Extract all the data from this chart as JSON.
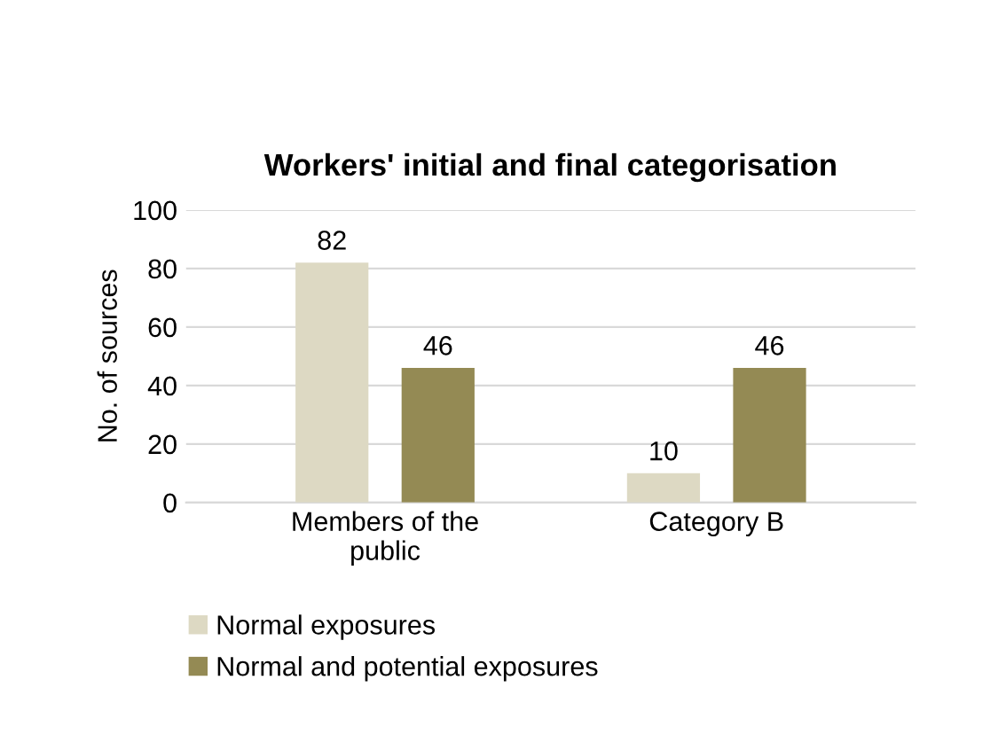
{
  "chart_data": {
    "type": "bar",
    "title": "Workers' initial and final categorisation",
    "ylabel": "No. of sources",
    "categories": [
      "Members of the\npublic",
      "Category B"
    ],
    "series": [
      {
        "name": "Normal exposures",
        "color": "#ddd9c3",
        "values": [
          82,
          10
        ]
      },
      {
        "name": "Normal and potential exposures",
        "color": "#948a54",
        "values": [
          46,
          46
        ]
      }
    ],
    "ylim": [
      0,
      100
    ],
    "yticks": [
      0,
      20,
      40,
      60,
      80,
      100
    ],
    "grid": "y",
    "legend": "bottom",
    "data_labels": true
  }
}
